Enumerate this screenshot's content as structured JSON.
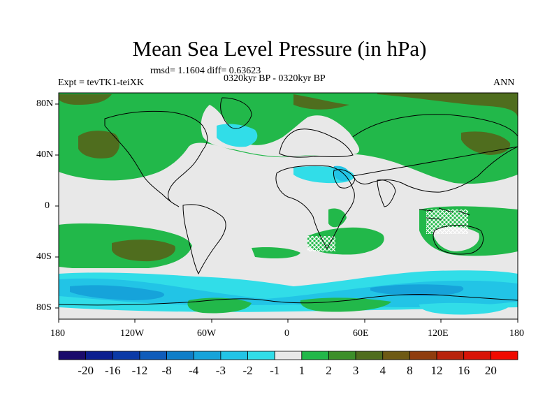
{
  "title": "Mean Sea Level Pressure (in hPa)",
  "stats": "rmsd= 1.1604  diff= 0.63623",
  "expt": "Expt = tevTK1-teiXK",
  "period": "0320kyr BP - 0320kyr BP",
  "season": "ANN",
  "lat_labels": [
    "80N",
    "40N",
    "0",
    "40S",
    "80S"
  ],
  "lon_labels": [
    "180",
    "120W",
    "60W",
    "0",
    "60E",
    "120E",
    "180"
  ],
  "colorbar": {
    "labels": [
      "-20",
      "-16",
      "-12",
      "-8",
      "-4",
      "-3",
      "-2",
      "-1",
      "1",
      "2",
      "3",
      "4",
      "8",
      "12",
      "16",
      "20"
    ],
    "colors": [
      "#1a0a6b",
      "#0c1f8f",
      "#0b3aa6",
      "#0f5cba",
      "#0f7ec8",
      "#16a3da",
      "#22c4e6",
      "#31dde8",
      "#e8e8e8",
      "#22b84a",
      "#3c8f2a",
      "#4f6d1e",
      "#6e5a14",
      "#8f3d0e",
      "#b8230c",
      "#d81408",
      "#f00a00"
    ]
  },
  "palette": {
    "neutral": "#e8e8e8",
    "green": "#22b84a",
    "darkgreen": "#3c8f2a",
    "olive": "#4f6d1e",
    "cyan": "#31dde8",
    "lightblue": "#22c4e6",
    "blue": "#16a3da"
  }
}
